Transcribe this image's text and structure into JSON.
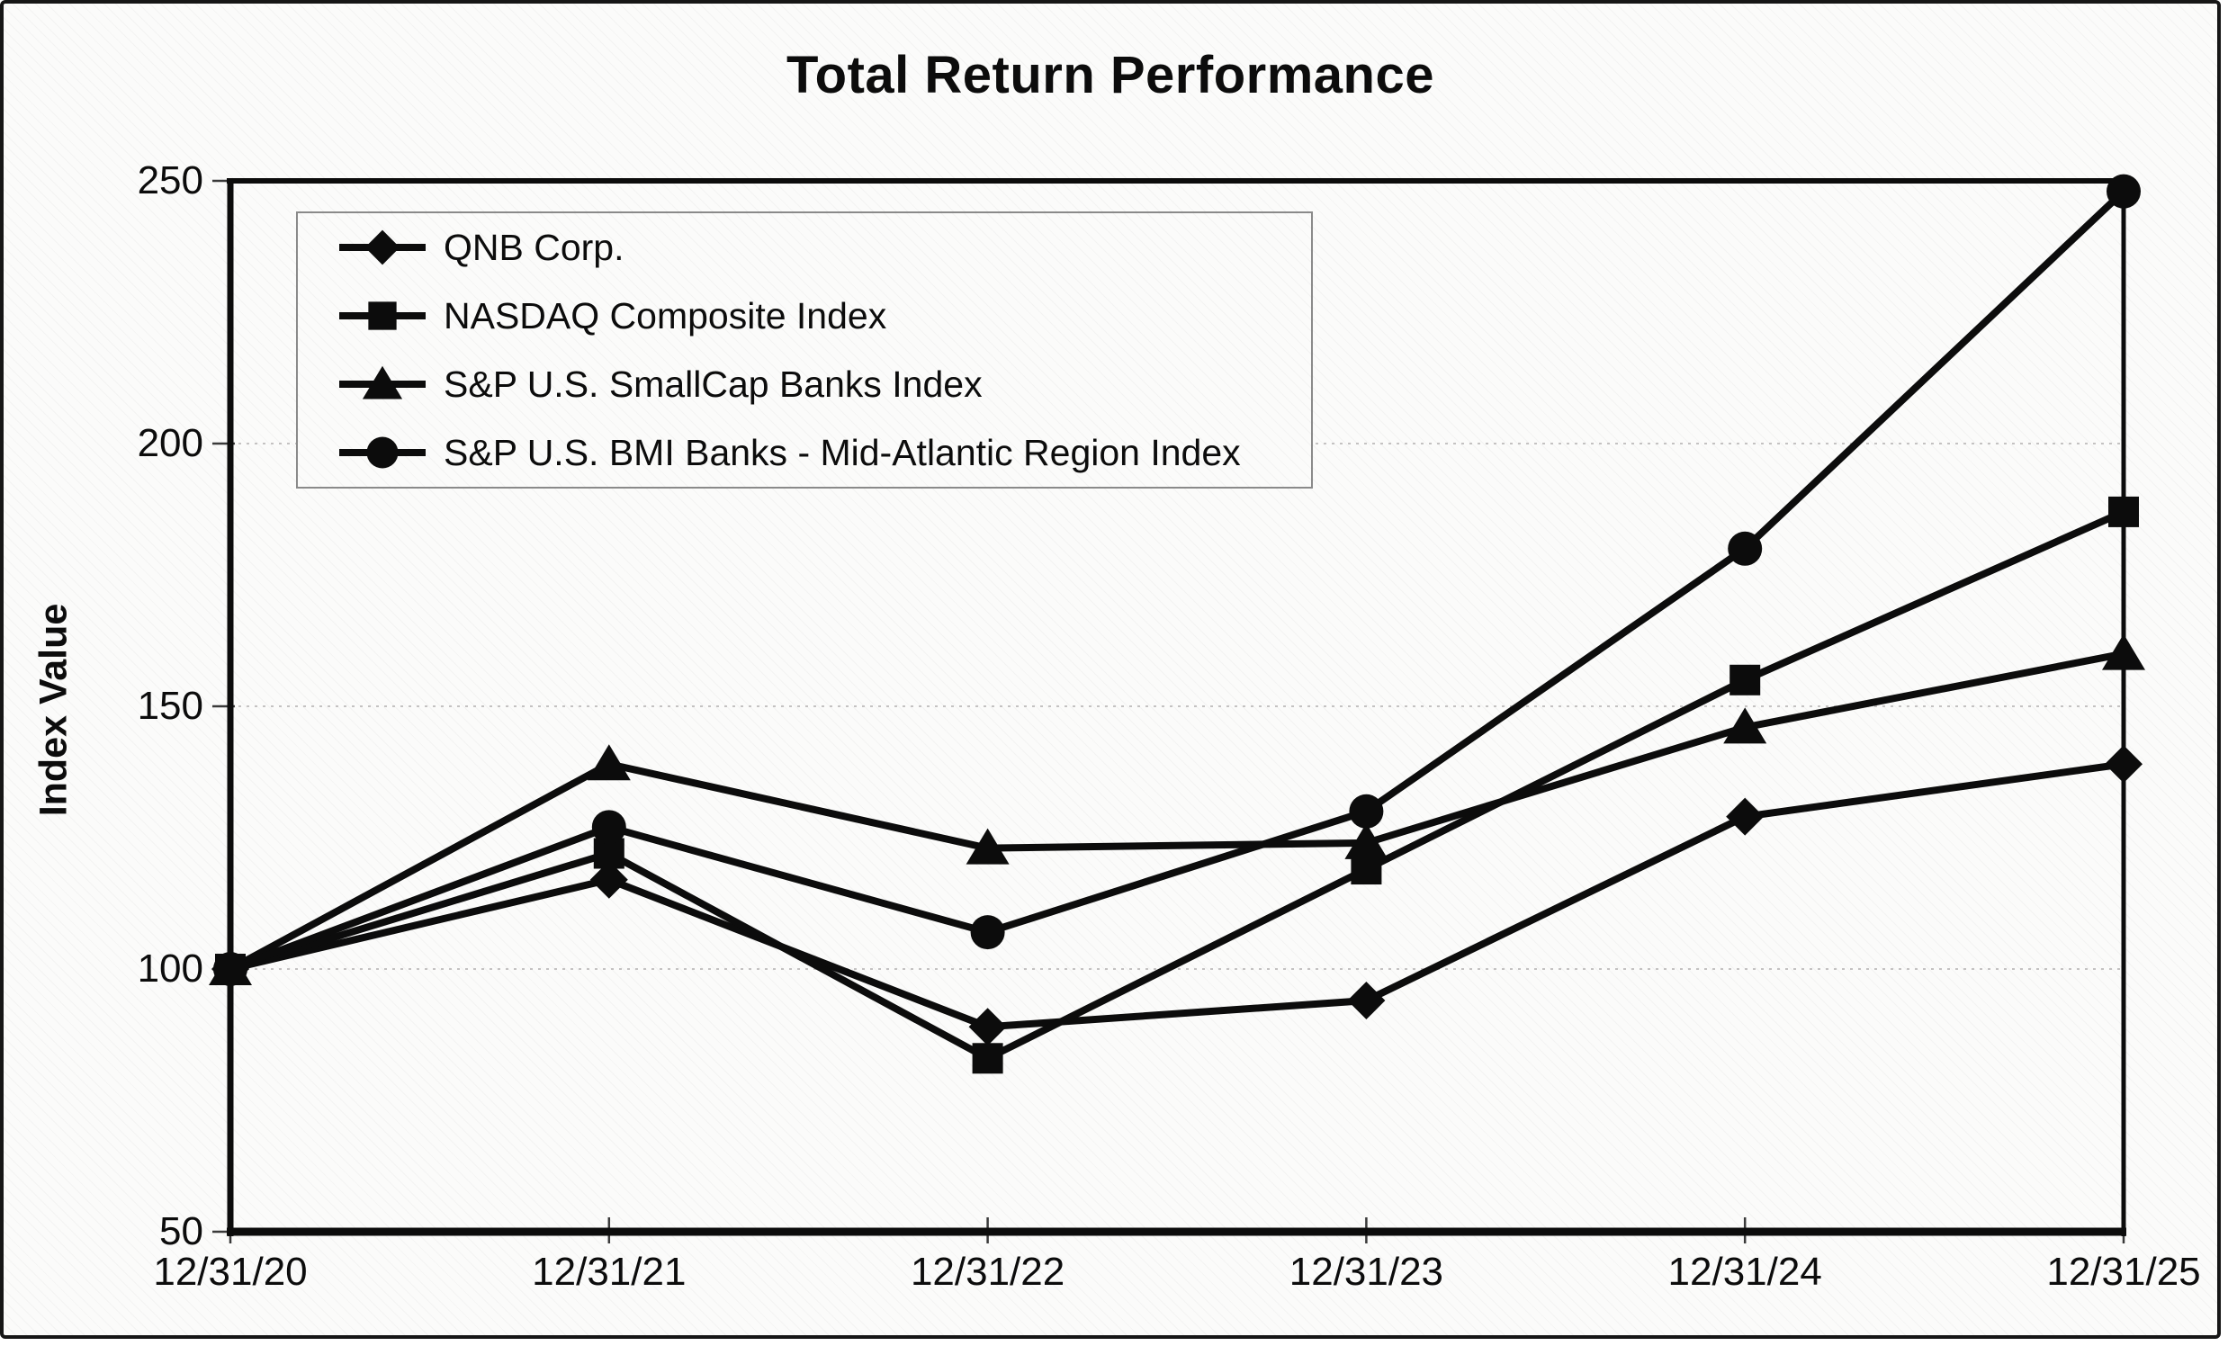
{
  "chart": {
    "title": "Total Return Performance",
    "y_axis_title": "Index Value"
  },
  "chart_data": {
    "type": "line",
    "title": "Total Return Performance",
    "xlabel": "",
    "ylabel": "Index Value",
    "categories": [
      "12/31/20",
      "12/31/21",
      "12/31/22",
      "12/31/23",
      "12/31/24",
      "12/31/25"
    ],
    "series": [
      {
        "name": "QNB Corp.",
        "marker": "diamond",
        "values": [
          100,
          117,
          89,
          94,
          129,
          139
        ]
      },
      {
        "name": "NASDAQ Composite Index",
        "marker": "square",
        "values": [
          100,
          122,
          83,
          119,
          155,
          187
        ]
      },
      {
        "name": "S&P U.S. SmallCap Banks Index",
        "marker": "triangle",
        "values": [
          100,
          139,
          123,
          124,
          146,
          160
        ]
      },
      {
        "name": "S&P U.S. BMI Banks - Mid-Atlantic Region Index",
        "marker": "circle",
        "values": [
          100,
          127,
          107,
          130,
          180,
          248
        ]
      }
    ],
    "ylim": [
      50,
      250
    ],
    "yticks": [
      250,
      200,
      150,
      100,
      50
    ],
    "grid": "horizontal-dotted",
    "legend_position": "upper-left-inside",
    "line_color": "#0c0c0c",
    "grid_color": "#bdbaba",
    "background_color": "#fbfbfa"
  }
}
